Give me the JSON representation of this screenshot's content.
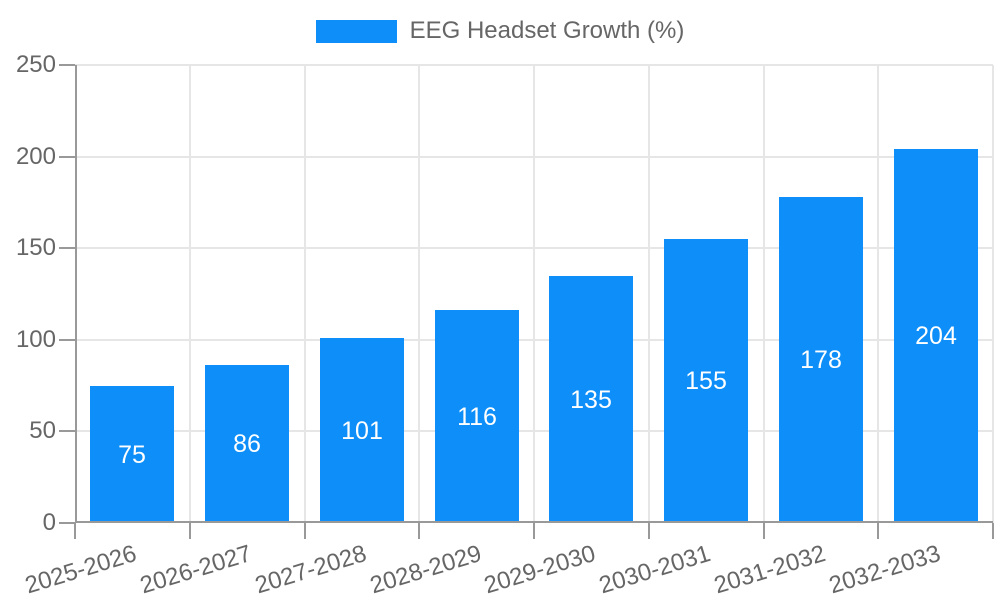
{
  "colors": {
    "bar": "#0d8ef8",
    "axis": "#999999",
    "grid": "#e6e6e6",
    "tick_text": "#666666",
    "value_label": "#ffffff",
    "background": "#ffffff"
  },
  "legend": {
    "label": "EEG Headset Growth (%)"
  },
  "chart_data": {
    "type": "bar",
    "title": "EEG Headset Growth (%)",
    "categories": [
      "2025-2026",
      "2026-2027",
      "2027-2028",
      "2028-2029",
      "2029-2030",
      "2030-2031",
      "2031-2032",
      "2032-2033"
    ],
    "series": [
      {
        "name": "EEG Headset Growth (%)",
        "values": [
          75,
          86,
          101,
          116,
          135,
          155,
          178,
          204
        ]
      }
    ],
    "xlabel": "",
    "ylabel": "",
    "ylim": [
      0,
      250
    ],
    "yticks": [
      0,
      50,
      100,
      150,
      200,
      250
    ],
    "grid": true,
    "legend_position": "top",
    "value_labels_position": "inside-center",
    "x_label_rotation_deg": -17
  }
}
